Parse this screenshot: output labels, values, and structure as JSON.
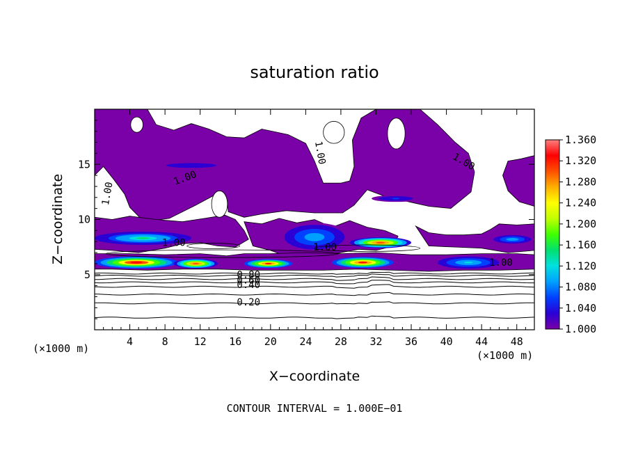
{
  "chart_data": {
    "type": "heatmap",
    "title": "saturation ratio",
    "xlabel": "X−coordinate",
    "ylabel": "Z−coordinate",
    "x_unit": "(×1000 m)",
    "y_unit": "(×1000 m)",
    "xlim": [
      0,
      50
    ],
    "ylim": [
      0,
      20
    ],
    "xticks": [
      4,
      8,
      12,
      16,
      20,
      24,
      28,
      32,
      36,
      40,
      44,
      48
    ],
    "yticks": [
      5,
      10,
      15
    ],
    "colorbar": {
      "min": 1.0,
      "max": 1.36,
      "ticks": [
        "1.360",
        "1.320",
        "1.280",
        "1.240",
        "1.200",
        "1.160",
        "1.120",
        "1.080",
        "1.040",
        "1.000"
      ],
      "colors": [
        "#7a00a8",
        "#2a00d4",
        "#0040ff",
        "#00a0ff",
        "#00e0e0",
        "#00e070",
        "#40ff00",
        "#c0ff00",
        "#ffff00",
        "#ffb000",
        "#ff5000",
        "#ff0000",
        "#ff8080"
      ]
    },
    "contour_interval": "CONTOUR INTERVAL = 1.000E−01",
    "contour_labels": [
      {
        "text": "1.00",
        "x": 1.8,
        "z": 12.3,
        "rotate": -80
      },
      {
        "text": "1.00",
        "x": 9.0,
        "z": 7.6,
        "rotate": 0
      },
      {
        "text": "1.00",
        "x": 10.4,
        "z": 13.5,
        "rotate": -20
      },
      {
        "text": "1.00",
        "x": 25.3,
        "z": 16.0,
        "rotate": 80
      },
      {
        "text": "1.00",
        "x": 41.8,
        "z": 15.0,
        "rotate": 30
      },
      {
        "text": "1.00",
        "x": 26.2,
        "z": 7.2,
        "rotate": 0
      },
      {
        "text": "1.00",
        "x": 46.2,
        "z": 5.8,
        "rotate": 0
      },
      {
        "text": "0.80",
        "x": 17.5,
        "z": 4.7,
        "rotate": 0
      },
      {
        "text": "0.60",
        "x": 17.5,
        "z": 4.2,
        "rotate": 0
      },
      {
        "text": "0.40",
        "x": 17.5,
        "z": 3.8,
        "rotate": 0
      },
      {
        "text": "0.20",
        "x": 17.5,
        "z": 2.2,
        "rotate": 0
      }
    ],
    "contour_levels": [
      {
        "value": 0.1,
        "z": 1.1
      },
      {
        "value": 0.2,
        "z": 2.4
      },
      {
        "value": 0.3,
        "z": 3.2
      },
      {
        "value": 0.4,
        "z": 3.9
      },
      {
        "value": 0.5,
        "z": 4.3
      },
      {
        "value": 0.6,
        "z": 4.6
      },
      {
        "value": 0.7,
        "z": 4.9
      },
      {
        "value": 0.8,
        "z": 5.1
      }
    ],
    "supersaturation_layers": [
      {
        "x0": 0.0,
        "x1": 11.0,
        "z": 8.3,
        "thick": 1.2,
        "peak": 1.14
      },
      {
        "x0": 0.0,
        "x1": 9.5,
        "z": 6.1,
        "thick": 1.1,
        "peak": 1.34
      },
      {
        "x0": 9.0,
        "x1": 14.0,
        "z": 6.0,
        "thick": 0.9,
        "peak": 1.3
      },
      {
        "x0": 17.0,
        "x1": 22.5,
        "z": 6.0,
        "thick": 0.8,
        "peak": 1.32
      },
      {
        "x0": 27.0,
        "x1": 34.0,
        "z": 6.1,
        "thick": 1.0,
        "peak": 1.33
      },
      {
        "x0": 29.0,
        "x1": 36.0,
        "z": 7.9,
        "thick": 1.0,
        "peak": 1.3
      },
      {
        "x0": 39.0,
        "x1": 46.0,
        "z": 6.1,
        "thick": 1.1,
        "peak": 1.12
      },
      {
        "x0": 45.0,
        "x1": 50.0,
        "z": 8.2,
        "thick": 0.9,
        "peak": 1.1
      },
      {
        "x0": 21.0,
        "x1": 29.0,
        "z": 8.4,
        "thick": 2.6,
        "peak": 1.1
      },
      {
        "x0": 7.0,
        "x1": 15.0,
        "z": 14.9,
        "thick": 0.6,
        "peak": 1.04
      },
      {
        "x0": 31.5,
        "x1": 37.0,
        "z": 11.9,
        "thick": 0.6,
        "peak": 1.05
      }
    ]
  }
}
